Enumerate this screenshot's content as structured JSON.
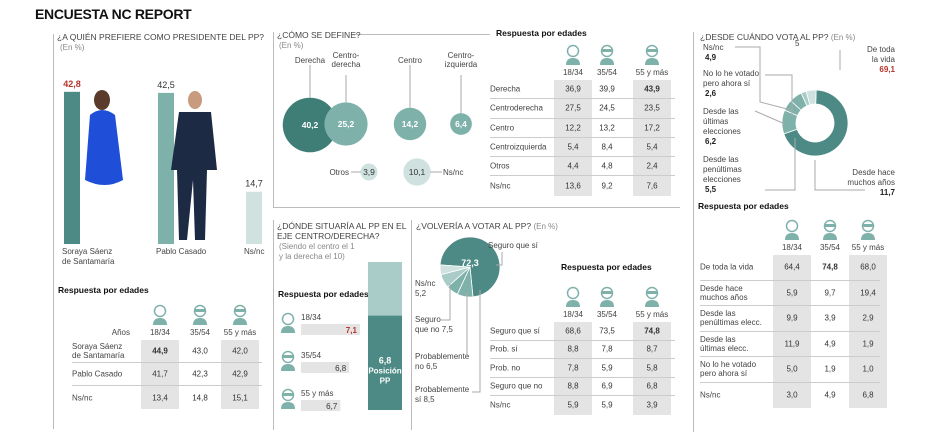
{
  "title": "ENCUESTA NC REPORT",
  "colors": {
    "dark": "#4d8a85",
    "mid": "#7fb1ab",
    "light": "#a9ccc8",
    "pale": "#cfe2e0",
    "red": "#b5322a",
    "shade": "#e4e4e4"
  },
  "age_headers": [
    "18/34",
    "35/54",
    "55 y más"
  ],
  "age_icons": [
    "young-person-icon",
    "middle-aged-person-icon",
    "senior-person-icon"
  ],
  "presidente": {
    "question": "¿A QUIÉN PREFIERE COMO PRESIDENTE DEL PP?",
    "unit": "(En %)",
    "chart_data": {
      "type": "bar",
      "categories": [
        "Soraya Sáenz de Santamaría",
        "Pablo Casado",
        "Ns/nc"
      ],
      "values": [
        42.8,
        42.5,
        14.7
      ],
      "labels": [
        "42,8",
        "42,5",
        "14,7"
      ],
      "ylim": [
        0,
        45
      ]
    },
    "cat_lines": [
      [
        "Soraya Sáenz",
        "de Santamaría"
      ],
      [
        "Pablo Casado"
      ],
      [
        "Ns/nc"
      ]
    ],
    "by_age": {
      "title": "Respuesta por edades",
      "years_label": "Años",
      "rows": [
        {
          "label": [
            "Soraya Sáenz",
            "de Santamaría"
          ],
          "values": [
            "44,9",
            "43,0",
            "42,0"
          ],
          "hi": 0
        },
        {
          "label": [
            "Pablo Casado"
          ],
          "values": [
            "41,7",
            "42,3",
            "42,9"
          ],
          "hi": -1
        },
        {
          "label": [
            "Ns/nc"
          ],
          "values": [
            "13,4",
            "14,8",
            "15,1"
          ],
          "hi": -1
        }
      ]
    }
  },
  "define": {
    "question": "¿CÓMO SE DEFINE?",
    "unit": "(En %)",
    "chart_data": {
      "type": "bubble",
      "categories": [
        "Derecha",
        "Centro-derecha",
        "Centro",
        "Centro-izquierda",
        "Otros",
        "Ns/nc"
      ],
      "values": [
        40.2,
        25.2,
        14.2,
        6.4,
        3.9,
        10.1
      ],
      "labels": [
        "40,2",
        "25,2",
        "14,2",
        "6,4",
        "3,9",
        "10,1"
      ]
    },
    "cat_lines": [
      [
        "Derecha"
      ],
      [
        "Centro-",
        "derecha"
      ],
      [
        "Centro"
      ],
      [
        "Centro-",
        "izquierda"
      ],
      [
        "Otros"
      ],
      [
        "Ns/nc"
      ]
    ],
    "by_age": {
      "title": "Respuesta por edades",
      "rows": [
        {
          "label": [
            "Derecha"
          ],
          "values": [
            "36,9",
            "39,9",
            "43,9"
          ],
          "hi": 2
        },
        {
          "label": [
            "Centroderecha"
          ],
          "values": [
            "27,5",
            "24,5",
            "23,5"
          ],
          "hi": -1
        },
        {
          "label": [
            "Centro"
          ],
          "values": [
            "12,2",
            "13,2",
            "17,2"
          ],
          "hi": -1
        },
        {
          "label": [
            "Centroizquierda"
          ],
          "values": [
            "5,4",
            "8,4",
            "5,4"
          ],
          "hi": -1
        },
        {
          "label": [
            "Otros"
          ],
          "values": [
            "4,4",
            "4,8",
            "2,4"
          ],
          "hi": -1
        },
        {
          "label": [
            "Ns/nc"
          ],
          "values": [
            "13,6",
            "9,2",
            "7,6"
          ],
          "hi": -1
        }
      ]
    }
  },
  "eje": {
    "question": [
      "¿DÓNDE SITUARÍA AL PP EN EL",
      "EJE CENTRO/DERECHA?"
    ],
    "note": [
      "(Siendo el centro el 1",
      "y la derecha el 10)"
    ],
    "by_age_title": "Respuesta por edades",
    "chart_data": {
      "type": "bar",
      "scale": [
        1,
        10
      ],
      "pp_position": 6.8,
      "pp_label": [
        "6,8",
        "Posición",
        "PP"
      ],
      "categories": [
        "18/34",
        "35/54",
        "55 y más"
      ],
      "values": [
        7.1,
        6.8,
        6.7
      ],
      "labels": [
        "7,1",
        "6,8",
        "6,7"
      ],
      "hi": 0
    }
  },
  "volveria": {
    "question": "¿VOLVERÍA A VOTAR AL PP?",
    "unit": "(En %)",
    "chart_data": {
      "type": "pie",
      "categories": [
        "Seguro que sí",
        "Probablemente sí",
        "Probablemente no",
        "Seguro que no",
        "Ns/nc"
      ],
      "values": [
        72.3,
        8.5,
        6.5,
        7.5,
        5.2
      ]
    },
    "slice_labels": {
      "si": "Seguro que sí",
      "si_val": "72,3",
      "nsnc": [
        "Ns/nc",
        "5,2"
      ],
      "no": [
        "Seguro",
        "que no 7,5"
      ],
      "pno": [
        "Probablemente",
        "no 6,5"
      ],
      "psi": [
        "Probablemente",
        "sí 8,5"
      ]
    },
    "by_age": {
      "title": "Respuesta por edades",
      "rows": [
        {
          "label": [
            "Seguro que sí"
          ],
          "values": [
            "68,6",
            "73,5",
            "74,8"
          ],
          "hi": 2
        },
        {
          "label": [
            "Prob. sí"
          ],
          "values": [
            "8,8",
            "7,8",
            "8,7"
          ],
          "hi": -1
        },
        {
          "label": [
            "Prob. no"
          ],
          "values": [
            "7,8",
            "5,9",
            "5,8"
          ],
          "hi": -1
        },
        {
          "label": [
            "Seguro que no"
          ],
          "values": [
            "8,8",
            "6,9",
            "6,8"
          ],
          "hi": -1
        },
        {
          "label": [
            "Ns/nc"
          ],
          "values": [
            "5,9",
            "5,9",
            "3,9"
          ],
          "hi": -1
        }
      ]
    }
  },
  "desde": {
    "question": "¿DESDE CUÁNDO VOTA AL PP?",
    "unit": "(En %)",
    "stray": "5",
    "chart_data": {
      "type": "pie",
      "donut": true,
      "categories": [
        "De toda la vida",
        "Desde hace muchos años",
        "Desde las penúltimas elecciones",
        "Desde las últimas elecciones",
        "No lo he votado pero ahora sí",
        "Ns/nc"
      ],
      "values": [
        69.1,
        11.7,
        5.5,
        6.2,
        2.6,
        4.9
      ]
    },
    "labels": {
      "toda": [
        "De toda",
        "la vida",
        "69,1"
      ],
      "muchos": [
        "Desde hace",
        "muchos años",
        "11,7"
      ],
      "penult": [
        "Desde las",
        "penúltimas",
        "elecciones",
        "5,5"
      ],
      "ult": [
        "Desde las",
        "últimas",
        "elecciones",
        "6,2"
      ],
      "nolo": [
        "No lo he votado",
        "pero ahora sí",
        "2,6"
      ],
      "nsnc": [
        "Ns/nc",
        "4,9"
      ]
    },
    "by_age": {
      "title": "Respuesta por edades",
      "rows": [
        {
          "label": [
            "De toda la vida"
          ],
          "values": [
            "64,4",
            "74,8",
            "68,0"
          ],
          "hi": 1
        },
        {
          "label": [
            "Desde hace",
            "muchos años"
          ],
          "values": [
            "5,9",
            "9,7",
            "19,4"
          ],
          "hi": -1
        },
        {
          "label": [
            "Desde las",
            "penúltimas elecc."
          ],
          "values": [
            "9,9",
            "3,9",
            "2,9"
          ],
          "hi": -1
        },
        {
          "label": [
            "Desde las",
            "últimas elecc."
          ],
          "values": [
            "11,9",
            "4,9",
            "1,9"
          ],
          "hi": -1
        },
        {
          "label": [
            "No lo he votado",
            "pero ahora sí"
          ],
          "values": [
            "5,0",
            "1,9",
            "1,0"
          ],
          "hi": -1
        },
        {
          "label": [
            "Ns/nc"
          ],
          "values": [
            "3,0",
            "4,9",
            "6,8"
          ],
          "hi": -1
        }
      ]
    }
  }
}
